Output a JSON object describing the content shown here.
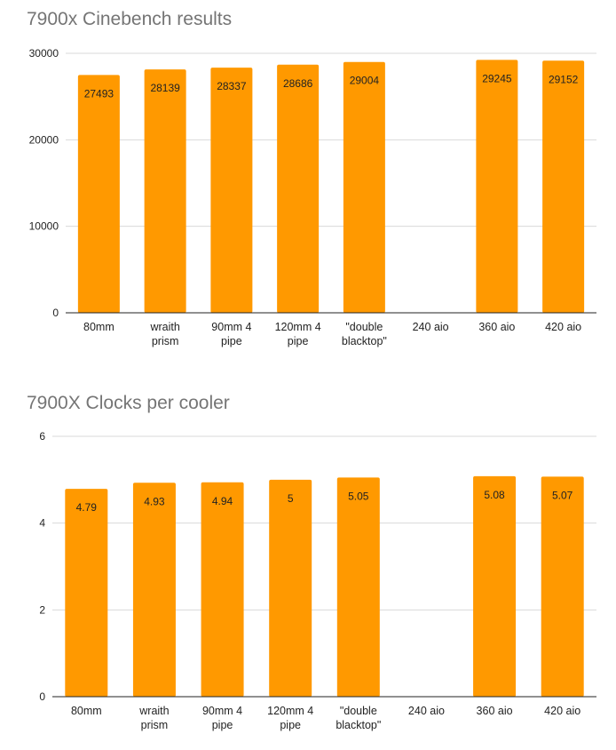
{
  "colors": {
    "bar": "#ff9900",
    "grid": "#d9d9d9",
    "axis": "#222222",
    "title": "#757575",
    "text": "#222222"
  },
  "chart_data": [
    {
      "type": "bar",
      "title": "7900x Cinebench results",
      "xlabel": "",
      "ylabel": "",
      "ylim": [
        0,
        30000
      ],
      "yticks": [
        0,
        10000,
        20000,
        30000
      ],
      "grid": true,
      "categories": [
        [
          "80mm"
        ],
        [
          "wraith",
          "prism"
        ],
        [
          "90mm 4",
          "pipe"
        ],
        [
          "120mm 4",
          "pipe"
        ],
        [
          "\"double",
          "blacktop\""
        ],
        [
          "240 aio"
        ],
        [
          "360 aio"
        ],
        [
          "420 aio"
        ]
      ],
      "values": [
        27493,
        28139,
        28337,
        28686,
        29004,
        null,
        29245,
        29152
      ],
      "value_labels": [
        "27493",
        "28139",
        "28337",
        "28686",
        "29004",
        "",
        "29245",
        "29152"
      ]
    },
    {
      "type": "bar",
      "title": "7900X Clocks per cooler",
      "xlabel": "",
      "ylabel": "",
      "ylim": [
        0,
        6
      ],
      "yticks": [
        0,
        2,
        4,
        6
      ],
      "grid": true,
      "categories": [
        [
          "80mm"
        ],
        [
          "wraith",
          "prism"
        ],
        [
          "90mm 4",
          "pipe"
        ],
        [
          "120mm 4",
          "pipe"
        ],
        [
          "\"double",
          "blacktop\""
        ],
        [
          "240 aio"
        ],
        [
          "360 aio"
        ],
        [
          "420 aio"
        ]
      ],
      "values": [
        4.79,
        4.93,
        4.94,
        5,
        5.05,
        null,
        5.08,
        5.07
      ],
      "value_labels": [
        "4.79",
        "4.93",
        "4.94",
        "5",
        "5.05",
        "",
        "5.08",
        "5.07"
      ]
    }
  ]
}
